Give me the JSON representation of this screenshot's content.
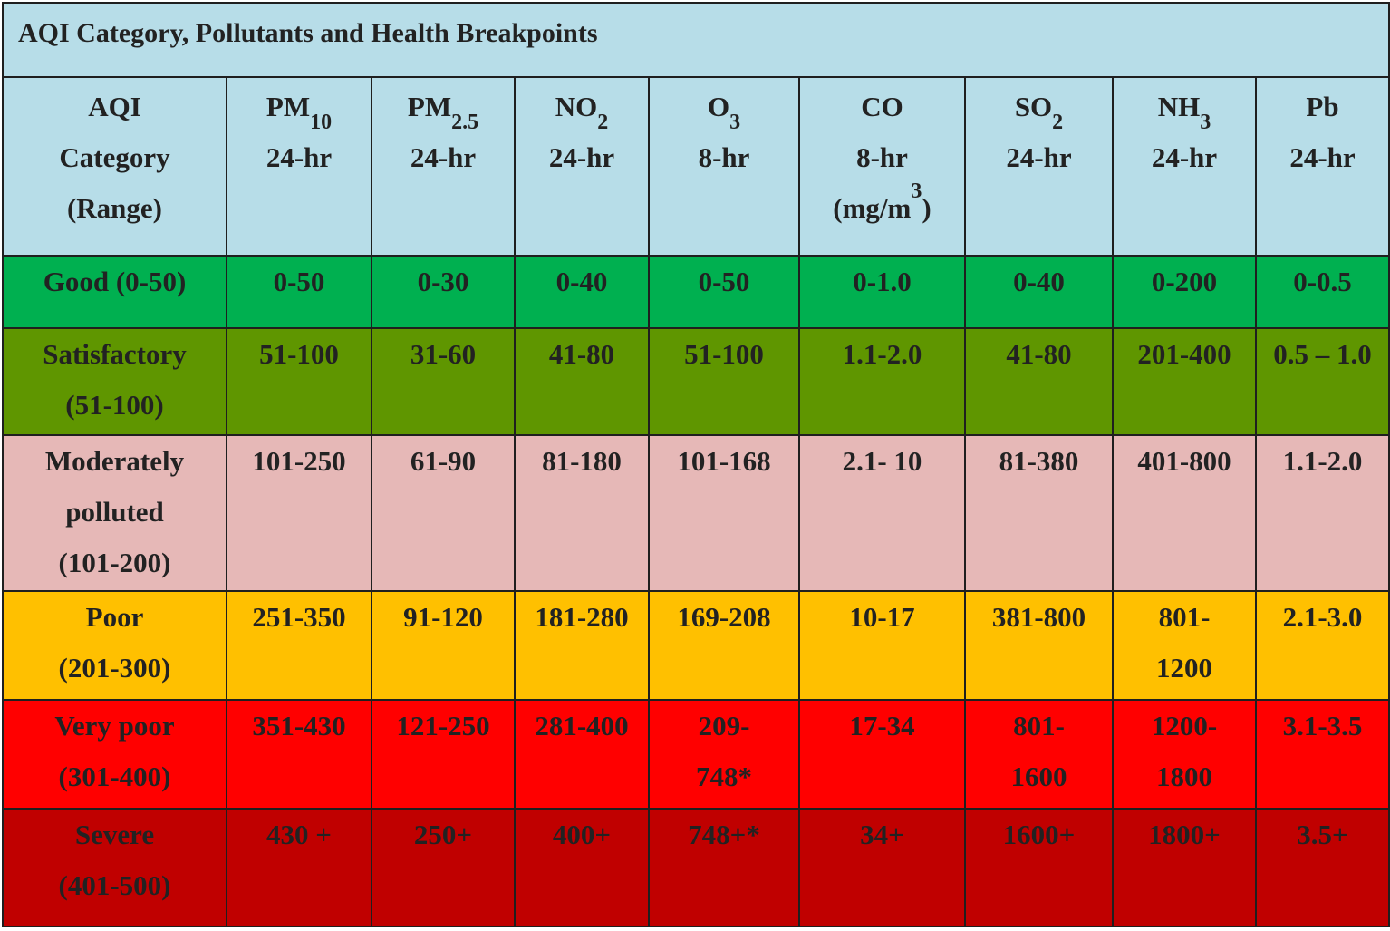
{
  "title": "AQI Category, Pollutants and Health Breakpoints",
  "header": [
    {
      "lines": [
        "AQI",
        "Category",
        "(Range)"
      ]
    },
    {
      "name": "PM",
      "sub": "10",
      "period": "24-hr"
    },
    {
      "name": "PM",
      "sub": "2.5",
      "period": "24-hr"
    },
    {
      "name": "NO",
      "sub": "2",
      "period": "24-hr"
    },
    {
      "name": "O",
      "sub": "3",
      "period": "8-hr"
    },
    {
      "name": "CO",
      "period": "8-hr",
      "unit": "(mg/m",
      "unit_sup": "3",
      "unit_close": ")"
    },
    {
      "name": "SO",
      "sub": "2",
      "period": "24-hr"
    },
    {
      "name": "NH",
      "sub": "3",
      "period": "24-hr"
    },
    {
      "name": "Pb",
      "period": "24-hr"
    }
  ],
  "rows": [
    {
      "category": "Good",
      "range": "(0-50)",
      "color": "#00b050",
      "values": [
        "0-50",
        "0-30",
        "0-40",
        "0-50",
        "0-1.0",
        "0-40",
        "0-200",
        "0-0.5"
      ]
    },
    {
      "category": "Satisfactory",
      "range": "(51-100)",
      "color": "#5f9600",
      "values": [
        "51-100",
        "31-60",
        "41-80",
        "51-100",
        "1.1-2.0",
        "41-80",
        "201-400",
        "0.5 – 1.0"
      ]
    },
    {
      "category": "Moderately polluted",
      "range": "(101-200)",
      "color": "#e6b8b7",
      "values": [
        "101-250",
        "61-90",
        "81-180",
        "101-168",
        "2.1- 10",
        "81-380",
        "401-800",
        "1.1-2.0"
      ]
    },
    {
      "category": "Poor",
      "range": "(201-300)",
      "color": "#ffc000",
      "values": [
        "251-350",
        "91-120",
        "181-280",
        "169-208",
        "10-17",
        "381-800",
        "801-1200",
        "2.1-3.0"
      ]
    },
    {
      "category": "Very poor",
      "range": "(301-400)",
      "color": "#ff0000",
      "values": [
        "351-430",
        "121-250",
        "281-400",
        "209-748*",
        "17-34",
        "801-1600",
        "1200-1800",
        "3.1-3.5"
      ]
    },
    {
      "category": "Severe",
      "range": "(401-500)",
      "color": "#c00000",
      "values": [
        "430 +",
        "250+",
        "400+",
        "748+*",
        "34+",
        "1600+",
        "1800+",
        "3.5+"
      ]
    }
  ]
}
